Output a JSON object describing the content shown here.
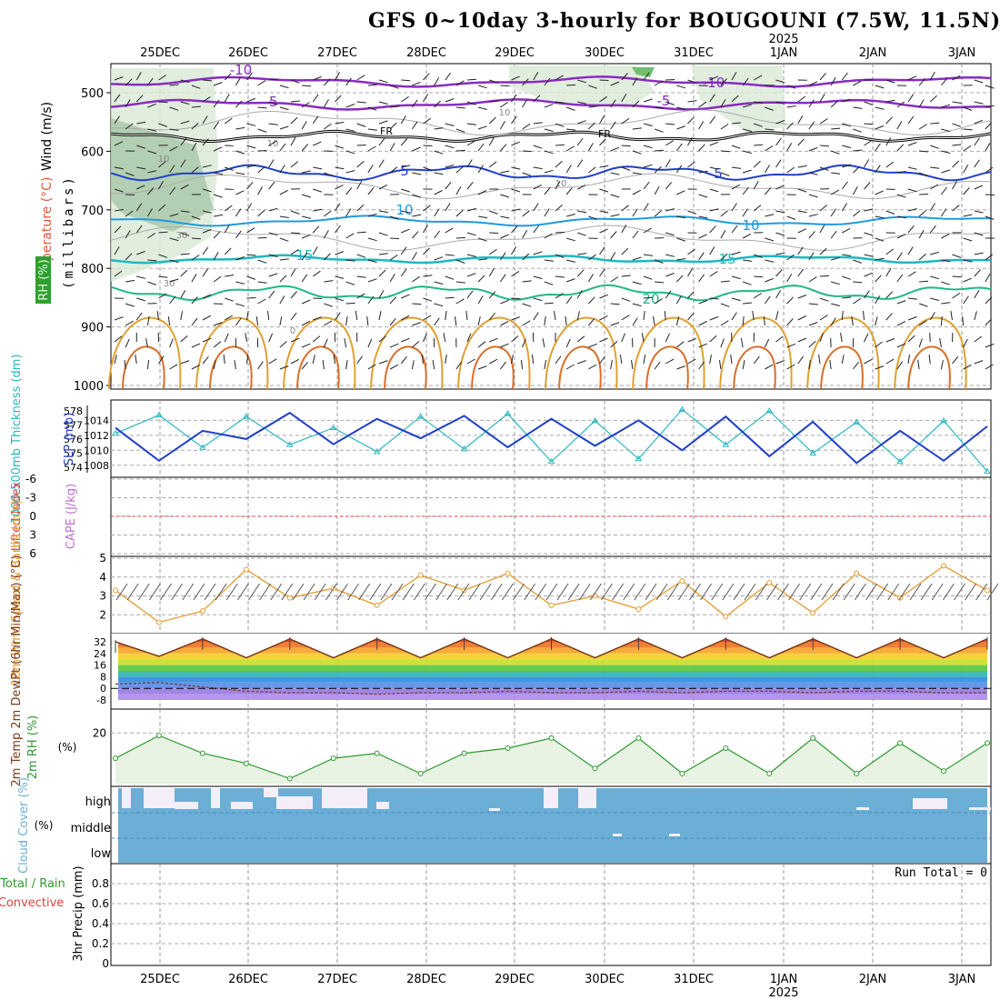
{
  "title": "GFS 0~10day 3-hourly for BOUGOUNI (7.5W, 11.5N)",
  "year_label": "2025",
  "date_labels": [
    "25DEC",
    "26DEC",
    "27DEC",
    "28DEC",
    "29DEC",
    "30DEC",
    "31DEC",
    "1JAN",
    "2JAN",
    "3JAN"
  ],
  "panels": {
    "upper_air": {
      "ylabel_wind": "Wind (m/s)",
      "ylabel_temp": "Temperature (°C)",
      "ylabel_pressure": "(millibars)",
      "ylabel_rh": "RH (%)",
      "pressure_ticks": [
        "500",
        "600",
        "700",
        "800",
        "900",
        "1000"
      ],
      "temp_contour_labels": [
        "-10",
        "-10",
        "-5",
        "-5",
        "FR",
        "FR",
        "5",
        "5",
        "10",
        "10",
        "15",
        "15",
        "20"
      ],
      "rh_contour_labels": [
        "10",
        "10",
        "10",
        "10",
        "30",
        "30",
        "0"
      ]
    },
    "slp_thickness": {
      "ylabel_thickness": "1000-500mb Thickness (dm)",
      "ylabel_slp": "SLP (mb)",
      "thickness_ticks": [
        "578",
        "577",
        "576",
        "575",
        "574"
      ],
      "slp_ticks": [
        "1014",
        "1012",
        "1010",
        "1008"
      ]
    },
    "li_cape": {
      "ylabel_li": "Lifted Index",
      "ylabel_cape": "CAPE (J/kg)",
      "li_ticks": [
        "-6",
        "-3",
        "0",
        "3",
        "6"
      ]
    },
    "wind10m": {
      "ylabel": "10m Wind Speed & Barbs (m/s)",
      "ticks": [
        "5",
        "4",
        "3",
        "2"
      ]
    },
    "temp2m": {
      "ylabel": "2m Temp 2m DewPt (6hr Min/Max) (°C)",
      "ticks": [
        "32",
        "24",
        "16",
        "8",
        "0",
        "-8"
      ]
    },
    "rh2m": {
      "ylabel": "2m RH (%)",
      "ticks": [
        "20"
      ]
    },
    "cloud": {
      "ylabel": "Cloud Cover (%)",
      "levels": [
        "high",
        "middle",
        "low"
      ]
    },
    "precip": {
      "ylabel_left": "Total / Rain",
      "ylabel_left2": "Convective",
      "ylabel": "3hr Precip (mm)",
      "ticks": [
        "0.8",
        "0.6",
        "0.4",
        "0.2",
        "0"
      ],
      "run_total": "Run Total = 0"
    }
  },
  "colors": {
    "slp": "#1f3fc8",
    "thickness": "#2ab8c0",
    "wind10m": "#e69a2e",
    "rh": "#2e9a2e",
    "cloud": "#6baed6",
    "temp_line": "#7a3a1a"
  },
  "chart_data": [
    {
      "type": "line",
      "title": "1000-500mb Thickness and SLP",
      "x": [
        "24DEC12",
        "25DEC00",
        "25DEC12",
        "26DEC00",
        "26DEC12",
        "27DEC00",
        "27DEC12",
        "28DEC00",
        "28DEC12",
        "29DEC00",
        "29DEC12",
        "30DEC00",
        "30DEC12",
        "31DEC00",
        "31DEC12",
        "1JAN00",
        "1JAN12",
        "2JAN00",
        "2JAN12",
        "3JAN00",
        "3JAN12"
      ],
      "series": [
        {
          "name": "SLP (mb)",
          "values": [
            1013.0,
            1008.6,
            1012.6,
            1011.5,
            1015.0,
            1010.8,
            1014.2,
            1011.6,
            1014.6,
            1010.4,
            1014.2,
            1010.6,
            1014.0,
            1010.0,
            1014.5,
            1009.2,
            1013.8,
            1008.3,
            1012.6,
            1008.6,
            1013.2
          ]
        },
        {
          "name": "Thickness (dm)",
          "values": [
            576.4,
            577.7,
            575.4,
            577.6,
            575.6,
            576.8,
            575.1,
            577.6,
            575.3,
            577.8,
            574.4,
            577.3,
            574.6,
            578.1,
            575.6,
            578.0,
            575.0,
            577.2,
            574.4,
            577.3,
            573.7
          ]
        }
      ]
    },
    {
      "type": "line",
      "title": "10m Wind Speed",
      "x": [
        "24DEC12",
        "25DEC00",
        "25DEC12",
        "26DEC00",
        "26DEC12",
        "27DEC00",
        "27DEC12",
        "28DEC00",
        "28DEC12",
        "29DEC00",
        "29DEC12",
        "30DEC00",
        "30DEC12",
        "31DEC00",
        "31DEC12",
        "1JAN00",
        "1JAN12",
        "2JAN00",
        "2JAN12",
        "3JAN00",
        "3JAN12"
      ],
      "series": [
        {
          "name": "10m Wind (m/s)",
          "values": [
            3.3,
            1.6,
            2.2,
            4.4,
            2.9,
            3.4,
            2.5,
            4.1,
            3.3,
            4.2,
            2.5,
            3.0,
            2.3,
            3.8,
            1.9,
            3.7,
            2.1,
            4.2,
            2.9,
            4.6,
            3.3
          ]
        }
      ],
      "ylim": [
        1,
        5
      ]
    },
    {
      "type": "area",
      "title": "2m Temp / DewPt",
      "x": [
        "24DEC12",
        "25DEC00",
        "25DEC12",
        "26DEC00",
        "26DEC12",
        "27DEC00",
        "27DEC12",
        "28DEC00",
        "28DEC12",
        "29DEC00",
        "29DEC12",
        "30DEC00",
        "30DEC12",
        "31DEC00",
        "31DEC12",
        "1JAN00",
        "1JAN12",
        "2JAN00",
        "2JAN12",
        "3JAN00",
        "3JAN12"
      ],
      "series": [
        {
          "name": "2m Temp",
          "values": [
            32,
            22,
            34,
            21,
            34,
            21,
            34,
            21,
            34,
            21,
            34,
            21,
            34,
            21,
            34,
            21,
            34,
            21,
            34,
            21,
            34
          ]
        },
        {
          "name": "2m DewPt",
          "values": [
            3,
            4,
            1,
            -2,
            -3,
            -3,
            -4,
            -3,
            -3,
            -2,
            -3,
            -3,
            -2,
            -3,
            -2,
            -2,
            -3,
            -2,
            -2,
            -3,
            -3
          ]
        }
      ],
      "ylim": [
        -12,
        38
      ]
    },
    {
      "type": "line",
      "title": "2m RH",
      "x": [
        "24DEC12",
        "25DEC00",
        "25DEC12",
        "26DEC00",
        "26DEC12",
        "27DEC00",
        "27DEC12",
        "28DEC00",
        "28DEC12",
        "29DEC00",
        "29DEC12",
        "30DEC00",
        "30DEC12",
        "31DEC00",
        "31DEC12",
        "1JAN00",
        "1JAN12",
        "2JAN00",
        "2JAN12",
        "3JAN00",
        "3JAN12"
      ],
      "series": [
        {
          "name": "2m RH (%)",
          "values": [
            10,
            19,
            12,
            8,
            2,
            10,
            12,
            4,
            12,
            14,
            18,
            6,
            18,
            4,
            14,
            4,
            18,
            4,
            16,
            5,
            16
          ]
        }
      ],
      "ylim": [
        0,
        30
      ]
    },
    {
      "type": "bar",
      "title": "3hr Precip",
      "x": [
        "25DEC",
        "26DEC",
        "27DEC",
        "28DEC",
        "29DEC",
        "30DEC",
        "31DEC",
        "1JAN",
        "2JAN",
        "3JAN"
      ],
      "values": [
        0,
        0,
        0,
        0,
        0,
        0,
        0,
        0,
        0,
        0
      ],
      "ylim": [
        0,
        1
      ]
    }
  ]
}
